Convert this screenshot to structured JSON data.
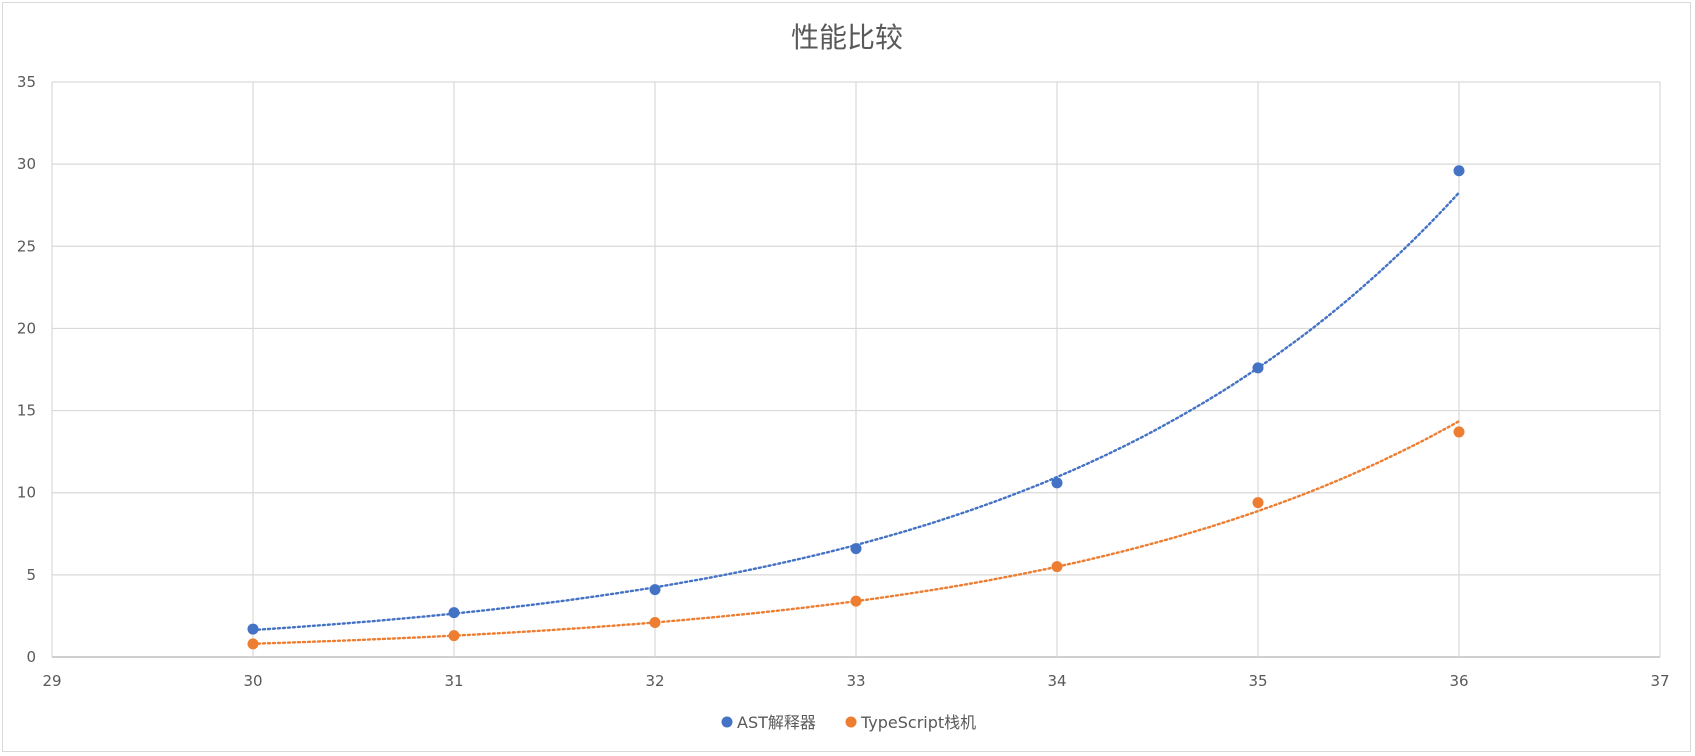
{
  "chart_data": {
    "type": "scatter",
    "title": "性能比较",
    "xlabel": "",
    "ylabel": "",
    "xlim": [
      29,
      37
    ],
    "ylim": [
      0,
      35
    ],
    "x_ticks": [
      29,
      30,
      31,
      32,
      33,
      34,
      35,
      36,
      37
    ],
    "y_ticks": [
      0,
      5,
      10,
      15,
      20,
      25,
      30,
      35
    ],
    "grid": true,
    "legend_position": "bottom",
    "trendline": "exponential, dotted",
    "x": [
      30,
      31,
      32,
      33,
      34,
      35,
      36
    ],
    "series": [
      {
        "name": "AST解释器",
        "color": "#4472c4",
        "values": [
          1.7,
          2.7,
          4.1,
          6.6,
          10.6,
          17.6,
          29.6
        ]
      },
      {
        "name": "TypeScript栈机",
        "color": "#ed7d31",
        "values": [
          0.8,
          1.3,
          2.1,
          3.4,
          5.5,
          9.4,
          13.7
        ]
      }
    ]
  }
}
